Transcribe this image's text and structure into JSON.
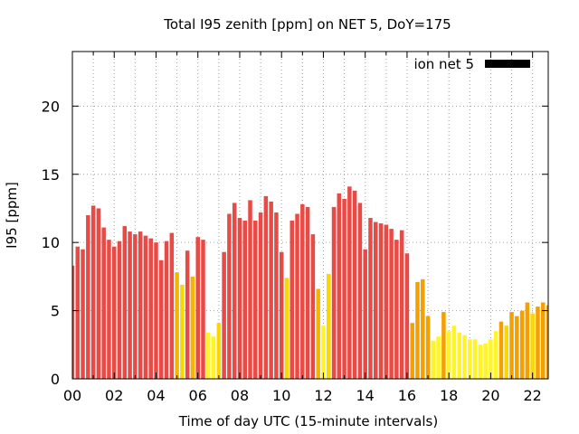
{
  "chart_data": {
    "type": "bar",
    "title": "Total I95 zenith [ppm] on NET 5, DoY=175",
    "xlabel": "Time of day UTC (15-minute intervals)",
    "ylabel": "I95 [ppm]",
    "xlim": [
      0,
      22.75
    ],
    "ylim": [
      0,
      24
    ],
    "x_ticks": [
      "00",
      "02",
      "04",
      "06",
      "08",
      "10",
      "12",
      "14",
      "16",
      "18",
      "20",
      "22"
    ],
    "y_ticks": [
      "0",
      "5",
      "10",
      "15",
      "20"
    ],
    "grid": true,
    "legend_position": "top-right",
    "series": [
      {
        "name": "ion net 5",
        "legend_color": "#000000",
        "x_start_hour": 0,
        "interval_hours": 0.25,
        "values": [
          8.3,
          9.7,
          9.5,
          12.0,
          12.7,
          12.5,
          11.1,
          10.2,
          9.7,
          10.1,
          11.2,
          10.8,
          10.6,
          10.8,
          10.5,
          10.3,
          10.0,
          8.7,
          10.1,
          10.7,
          7.8,
          6.9,
          9.4,
          7.5,
          10.4,
          10.2,
          3.4,
          3.1,
          4.1,
          9.3,
          12.1,
          12.9,
          11.8,
          11.6,
          13.1,
          11.6,
          12.2,
          13.4,
          13.0,
          12.2,
          9.3,
          7.4,
          11.6,
          12.1,
          12.8,
          12.6,
          10.6,
          6.6,
          3.9,
          7.7,
          12.6,
          13.6,
          13.2,
          14.1,
          13.8,
          12.9,
          9.5,
          11.8,
          11.5,
          11.4,
          11.3,
          11.0,
          10.2,
          10.9,
          9.2,
          4.1,
          7.1,
          7.3,
          4.6,
          2.8,
          3.1,
          4.9,
          3.5,
          3.9,
          3.4,
          3.2,
          2.9,
          2.9,
          2.5,
          2.6,
          2.9,
          3.5,
          4.2,
          3.9,
          4.9,
          4.6,
          5.0,
          5.6,
          4.8,
          5.3,
          5.6,
          5.4
        ],
        "colors": [
          "#e84a45",
          "#e84a45",
          "#e84a45",
          "#e84a45",
          "#e84a45",
          "#e84a45",
          "#e84a45",
          "#e84a45",
          "#e84a45",
          "#e84a45",
          "#e84a45",
          "#e84a45",
          "#e84a45",
          "#e84a45",
          "#e84a45",
          "#e84a45",
          "#e84a45",
          "#e84a45",
          "#e84a45",
          "#e84a45",
          "#f4b400",
          "#fbd600",
          "#e84a45",
          "#f4b400",
          "#e84a45",
          "#e84a45",
          "#fff42a",
          "#fff42a",
          "#fbd600",
          "#e84a45",
          "#e84a45",
          "#e84a45",
          "#e84a45",
          "#e84a45",
          "#e84a45",
          "#e84a45",
          "#e84a45",
          "#e84a45",
          "#e84a45",
          "#e84a45",
          "#e84a45",
          "#fbd600",
          "#e84a45",
          "#e84a45",
          "#e84a45",
          "#e84a45",
          "#e84a45",
          "#f4b400",
          "#fff42a",
          "#fbd600",
          "#e84a45",
          "#e84a45",
          "#e84a45",
          "#e84a45",
          "#e84a45",
          "#e84a45",
          "#e84a45",
          "#e84a45",
          "#e84a45",
          "#e84a45",
          "#e84a45",
          "#e84a45",
          "#e84a45",
          "#e84a45",
          "#e84a45",
          "#f4a000",
          "#f4a000",
          "#f4a000",
          "#f4a000",
          "#fff42a",
          "#fff42a",
          "#f4a000",
          "#fff42a",
          "#fff42a",
          "#fff42a",
          "#fff42a",
          "#fff42a",
          "#fff42a",
          "#fff42a",
          "#fff42a",
          "#fff42a",
          "#fff42a",
          "#f4a000",
          "#fbd600",
          "#f4a000",
          "#f4a000",
          "#f4a000",
          "#f4a000",
          "#fbd600",
          "#f4a000",
          "#f4a000",
          "#f4a000"
        ]
      }
    ]
  }
}
